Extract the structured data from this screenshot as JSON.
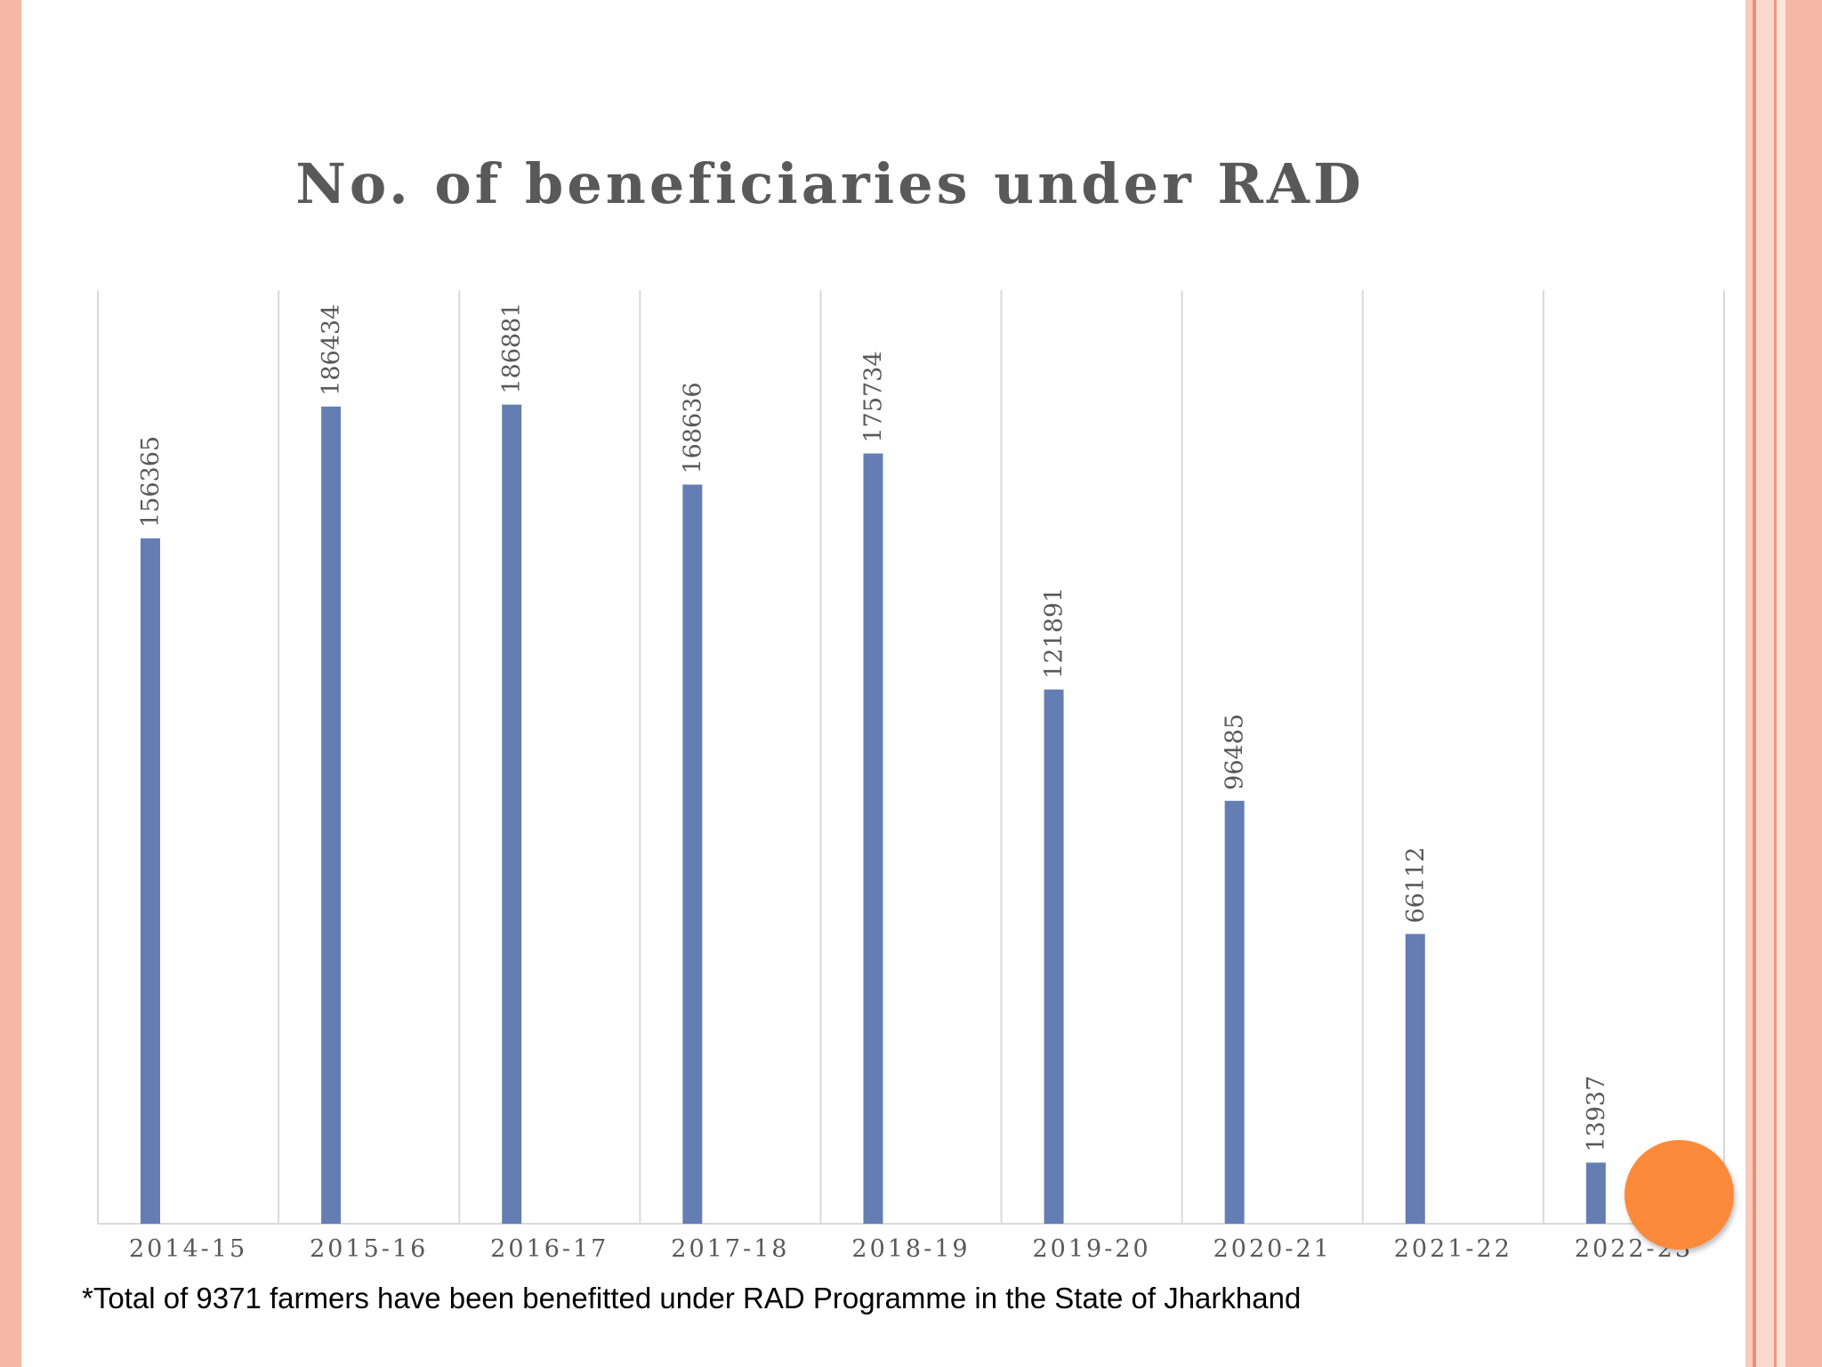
{
  "theme": {
    "bar_color": "#647eb4",
    "grid_color": "#d9d9d9",
    "label_color": "#595959",
    "accent_circle": "#fd8a3b",
    "border_color": "#f6b8a6"
  },
  "chart_data": {
    "type": "bar",
    "title": "No. of beneficiaries under RAD",
    "xlabel": "",
    "ylabel": "",
    "categories": [
      "2014-15",
      "2015-16",
      "2016-17",
      "2017-18",
      "2018-19",
      "2019-20",
      "2020-21",
      "2021-22",
      "2022-23"
    ],
    "values": [
      156365,
      186434,
      186881,
      168636,
      175734,
      121891,
      96485,
      66112,
      13937
    ],
    "data_labels": [
      "156365",
      "186434",
      "186881",
      "168636",
      "175734",
      "121891",
      "96485",
      "66112",
      "13937"
    ],
    "ylim": [
      0,
      200000
    ],
    "grid": "vertical",
    "legend": "none"
  },
  "footnote": "*Total of 9371 farmers have been benefitted under RAD Programme in the State of Jharkhand"
}
